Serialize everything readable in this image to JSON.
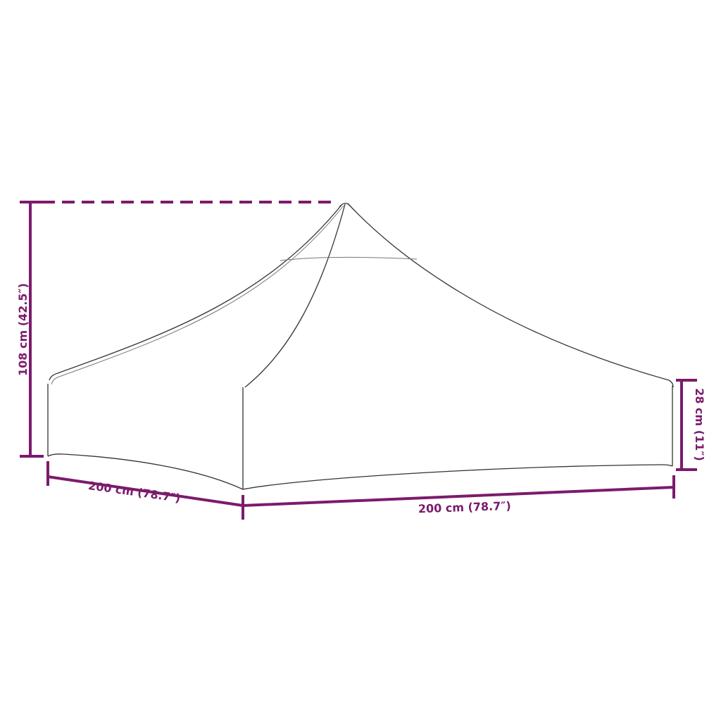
{
  "dimensions": {
    "height_total": "108 cm (42.5″)",
    "depth": "200 cm (78.7″)",
    "width": "200 cm (78.7″)",
    "side_height": "28 cm (11″)"
  },
  "colors": {
    "dimension_lines": "#7b1b6c",
    "outline": "#333333"
  }
}
